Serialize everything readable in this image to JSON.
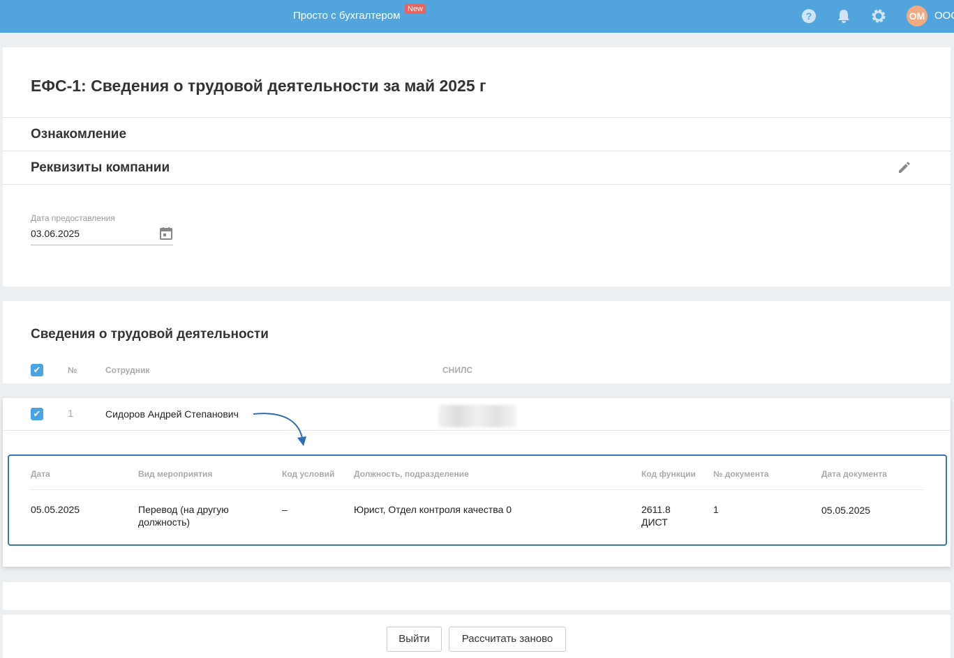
{
  "header": {
    "brand": "Просто с бухгалтером",
    "badge": "New",
    "avatar": "ОМ",
    "org": "ООО",
    "accent": "#52a5dc"
  },
  "page": {
    "title": "ЕФС-1: Сведения о трудовой деятельности за май 2025 г"
  },
  "sections": {
    "intro": "Ознакомление",
    "company": "Реквизиты компании"
  },
  "date_field": {
    "label": "Дата предоставления",
    "value": "03.06.2025"
  },
  "employees": {
    "title": "Сведения о трудовой деятельности",
    "columns": [
      "№",
      "Сотрудник",
      "СНИЛС"
    ],
    "rows": [
      {
        "num": "1",
        "name": "Сидоров Андрей Степанович",
        "checked": true
      }
    ]
  },
  "details": {
    "columns": [
      "Дата",
      "Вид мероприятия",
      "Код условий",
      "Должность, подразделение",
      "Код функции",
      "№ документа",
      "Дата документа"
    ],
    "rows": [
      [
        "05.05.2025",
        "Перевод (на другую должность)",
        "–",
        "Юрист, Отдел контроля качества 0",
        "2611.8 ДИСТ",
        "1",
        "05.05.2025"
      ]
    ]
  },
  "footer": {
    "exit": "Выйти",
    "recalc": "Рассчитать заново"
  }
}
